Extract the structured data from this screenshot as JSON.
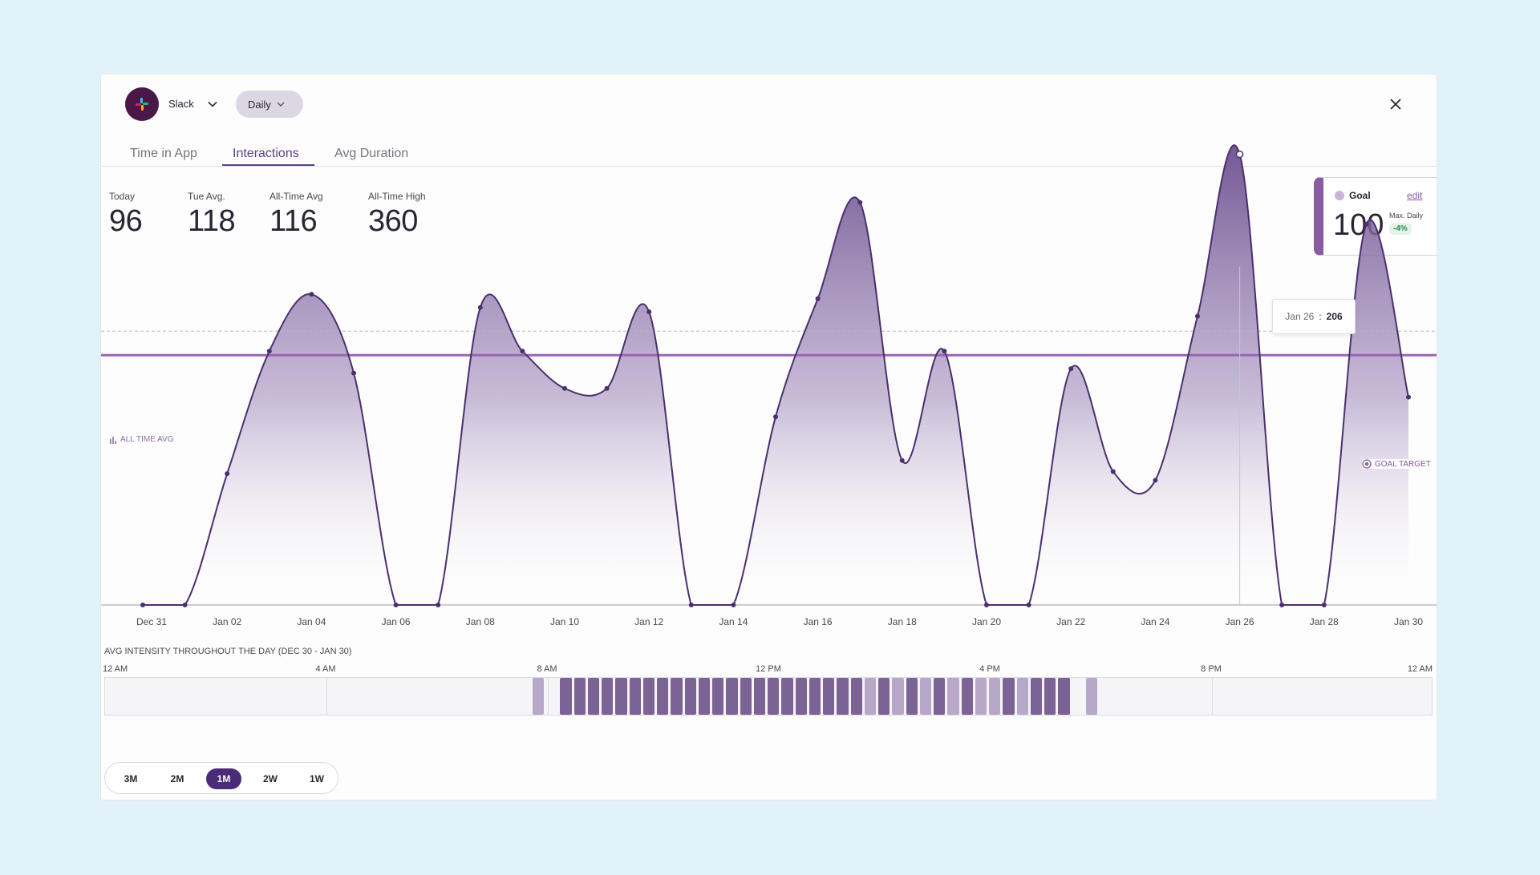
{
  "header": {
    "app_name": "Slack",
    "period": "Daily"
  },
  "tabs": [
    {
      "label": "Time in App",
      "active": false
    },
    {
      "label": "Interactions",
      "active": true
    },
    {
      "label": "Avg Duration",
      "active": false
    }
  ],
  "stats": [
    {
      "label": "Today",
      "value": "96"
    },
    {
      "label": "Tue Avg.",
      "value": "118"
    },
    {
      "label": "All-Time Avg",
      "value": "116"
    },
    {
      "label": "All-Time High",
      "value": "360"
    }
  ],
  "goal": {
    "title": "Goal",
    "edit_label": "edit",
    "value": "100",
    "max_label": "Max. Daily",
    "change": "-4%"
  },
  "chart_labels": {
    "all_time_avg": "ALL TIME AVG",
    "goal_target": "GOAL TARGET"
  },
  "tooltip": {
    "date": "Jan 26",
    "separator": ":",
    "value": "206"
  },
  "chart_data": {
    "type": "area",
    "x": [
      "Dec 31",
      "Jan 01",
      "Jan 02",
      "Jan 03",
      "Jan 04",
      "Jan 05",
      "Jan 06",
      "Jan 07",
      "Jan 08",
      "Jan 09",
      "Jan 10",
      "Jan 11",
      "Jan 12",
      "Jan 13",
      "Jan 14",
      "Jan 15",
      "Jan 16",
      "Jan 17",
      "Jan 18",
      "Jan 19",
      "Jan 20",
      "Jan 21",
      "Jan 22",
      "Jan 23",
      "Jan 24",
      "Jan 25",
      "Jan 26",
      "Jan 27",
      "Jan 28",
      "Jan 29",
      "Jan 30"
    ],
    "x_tick_labels": [
      "Dec 31",
      "Jan 02",
      "Jan 04",
      "Jan 06",
      "Jan 08",
      "Jan 10",
      "Jan 12",
      "Jan 14",
      "Jan 16",
      "Jan 18",
      "Jan 20",
      "Jan 22",
      "Jan 24",
      "Jan 26",
      "Jan 28",
      "Jan 30"
    ],
    "values": [
      0,
      0,
      60,
      116,
      142,
      106,
      0,
      0,
      136,
      116,
      99,
      99,
      134,
      0,
      0,
      86,
      140,
      184,
      66,
      116,
      0,
      0,
      108,
      61,
      57,
      132,
      206,
      0,
      0,
      174,
      95
    ],
    "all_time_avg": 116,
    "goal_target": 100,
    "ylim": [
      0,
      215
    ],
    "grid": false,
    "highlight_index": 26
  },
  "intensity": {
    "title": "AVG INTENSITY THROUGHOUT THE DAY (DEC 30 - JAN 30)",
    "hour_labels": [
      "12 AM",
      "4 AM",
      "8 AM",
      "12 PM",
      "4 PM",
      "8 PM",
      "12 AM"
    ],
    "start_hour": 7.7,
    "slot_minutes": 15,
    "levels": [
      2,
      0,
      3,
      3,
      3,
      3,
      3,
      3,
      3,
      3,
      3,
      3,
      3,
      3,
      3,
      3,
      3,
      3,
      3,
      3,
      3,
      3,
      3,
      3,
      2,
      3,
      2,
      3,
      2,
      3,
      2,
      3,
      2,
      2,
      3,
      2,
      3,
      3,
      3,
      0,
      2
    ]
  },
  "ranges": [
    {
      "label": "3M",
      "active": false
    },
    {
      "label": "2M",
      "active": false
    },
    {
      "label": "1M",
      "active": true
    },
    {
      "label": "2W",
      "active": false
    },
    {
      "label": "1W",
      "active": false
    }
  ],
  "colors": {
    "accent": "#5a3f8d",
    "line": "#4b2f6e",
    "goal_line": "#9b63b5",
    "intensity_high": "#7b6396",
    "intensity_low": "#b7a8c9"
  }
}
